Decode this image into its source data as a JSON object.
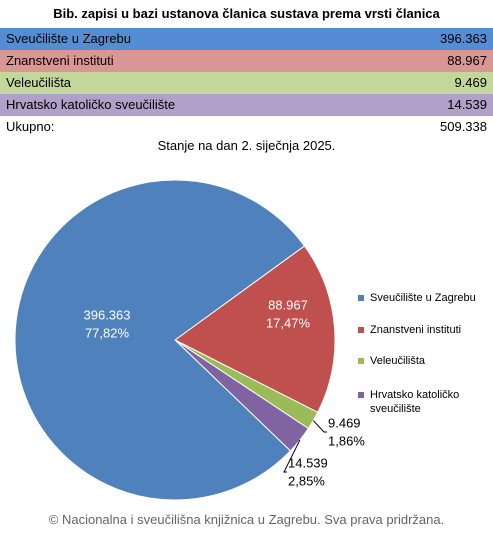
{
  "table": {
    "title": "Bib. zapisi u bazi ustanova članica sustava prema vrsti članica",
    "rows": [
      [
        "Sveučilište u Zagrebu",
        "396.363"
      ],
      [
        "Znanstveni instituti",
        "88.967"
      ],
      [
        "Veleučilišta",
        "9.469"
      ],
      [
        "Hrvatsko katoličko sveučilište",
        "14.539"
      ],
      [
        "Ukupno:",
        "509.338"
      ]
    ],
    "row_colors": [
      "#548dd4",
      "#da9694",
      "#c4d79b",
      "#b1a0c7",
      "#ffffff"
    ]
  },
  "chart_data": {
    "type": "pie",
    "title": "Stanje na dan 2. siječnja 2025.",
    "categories": [
      "Sveučilište u Zagrebu",
      "Znanstveni instituti",
      "Veleučilišta",
      "Hrvatsko katoličko sveučilište"
    ],
    "values": [
      396363,
      88967,
      9469,
      14539
    ],
    "value_labels": [
      "396.363",
      "88.967",
      "9.469",
      "14.539"
    ],
    "percent_labels": [
      "77,82%",
      "17,47%",
      "1,86%",
      "2,85%"
    ],
    "colors": [
      "#4f81bd",
      "#c0504d",
      "#9bbb59",
      "#8064a2"
    ],
    "legend": "right"
  },
  "footer": "© Nacionalna i sveučilišna knjižnica u Zagrebu. Sva prava pridržana."
}
